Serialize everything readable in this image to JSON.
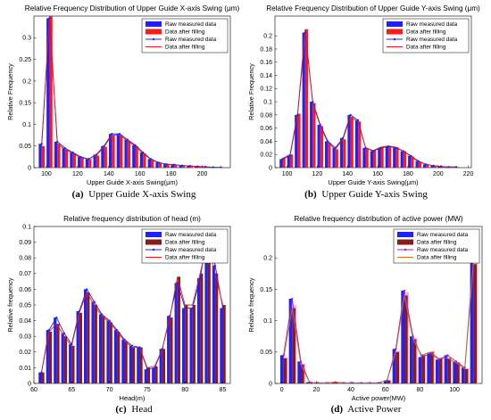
{
  "colors": {
    "raw_bar": "#1f1fff",
    "fill_bar_red": "#ff1a1a",
    "fill_bar_brown": "#8b1a1a",
    "fill_bar_pink": "#f4a6c8",
    "raw_line": "#1f1fff",
    "fill_line": "#e8141c",
    "raw_line_magenta": "#9b1fd0",
    "fill_line_orange": "#d2691e"
  },
  "chart_data": [
    {
      "panel_key": "a",
      "type": "bar",
      "caption_label": "(a)",
      "caption_text": "Upper Guide X-axis Swing",
      "title": "Relative Frequency Distribution of Upper Guide X-axis Swing (μm)",
      "xlabel": "Upper Guide X-axis Swing(μm)",
      "ylabel": "Relative Frequency",
      "xlim": [
        92,
        218
      ],
      "ylim": [
        0,
        0.35
      ],
      "xticks": [
        100,
        120,
        140,
        160,
        180,
        200
      ],
      "yticks": [
        0,
        0.05,
        0.1,
        0.15,
        0.2,
        0.25,
        0.3
      ],
      "bar_style": "red",
      "legend": [
        "Raw measured data",
        "Data after filling",
        "Raw measured data",
        "Data after filling"
      ],
      "x": [
        97,
        102,
        107,
        112,
        117,
        122,
        127,
        132,
        137,
        142,
        147,
        152,
        157,
        162,
        167,
        172,
        177,
        182,
        187,
        192,
        197,
        202,
        207,
        212
      ],
      "series": [
        {
          "name": "Raw measured data",
          "values": [
            0.055,
            0.345,
            0.06,
            0.045,
            0.035,
            0.025,
            0.02,
            0.03,
            0.05,
            0.078,
            0.078,
            0.065,
            0.052,
            0.035,
            0.02,
            0.012,
            0.008,
            0.007,
            0.005,
            0.004,
            0.003,
            0.002,
            0.001,
            0.001
          ]
        },
        {
          "name": "Data after filling",
          "values": [
            0.05,
            0.35,
            0.055,
            0.042,
            0.033,
            0.023,
            0.02,
            0.028,
            0.048,
            0.075,
            0.075,
            0.062,
            0.05,
            0.033,
            0.019,
            0.011,
            0.008,
            0.006,
            0.005,
            0.004,
            0.003,
            0.002,
            0.001,
            0.001
          ]
        }
      ]
    },
    {
      "panel_key": "b",
      "type": "bar",
      "caption_label": "(b)",
      "caption_text": "Upper Guide Y-axis Swing",
      "title": "Relative Frequency Distribution of Upper Guide Y-axis Swing (μm)",
      "xlabel": "Upper Guide Y-axis Swing(μm)",
      "ylabel": "Relative Frequency",
      "xlim": [
        92,
        222
      ],
      "ylim": [
        0,
        0.23
      ],
      "xticks": [
        100,
        120,
        140,
        160,
        180,
        200,
        220
      ],
      "yticks": [
        0,
        0.02,
        0.04,
        0.06,
        0.08,
        0.1,
        0.12,
        0.14,
        0.16,
        0.18,
        0.2
      ],
      "bar_style": "red",
      "legend": [
        "Raw measured data",
        "Data after filling",
        "Raw measured data",
        "Data after filling"
      ],
      "x": [
        97,
        102,
        107,
        112,
        117,
        122,
        127,
        132,
        137,
        142,
        147,
        152,
        157,
        162,
        167,
        172,
        177,
        182,
        187,
        192,
        197,
        202,
        207,
        212
      ],
      "series": [
        {
          "name": "Raw measured data",
          "values": [
            0.013,
            0.018,
            0.08,
            0.205,
            0.1,
            0.065,
            0.04,
            0.03,
            0.045,
            0.08,
            0.072,
            0.03,
            0.025,
            0.03,
            0.032,
            0.03,
            0.025,
            0.018,
            0.01,
            0.005,
            0.003,
            0.002,
            0.001,
            0.001
          ]
        },
        {
          "name": "Data after filling",
          "values": [
            0.014,
            0.02,
            0.082,
            0.21,
            0.098,
            0.063,
            0.038,
            0.028,
            0.043,
            0.077,
            0.07,
            0.03,
            0.026,
            0.031,
            0.033,
            0.031,
            0.025,
            0.017,
            0.009,
            0.005,
            0.003,
            0.002,
            0.001,
            0.001
          ]
        }
      ]
    },
    {
      "panel_key": "c",
      "type": "bar",
      "caption_label": "(c)",
      "caption_text": "Head",
      "title": "Relative frequency distribution of head (m)",
      "xlabel": "Head(m)",
      "ylabel": "Relative frequency",
      "xlim": [
        60,
        86
      ],
      "ylim": [
        0,
        0.1
      ],
      "xticks": [
        60,
        65,
        70,
        75,
        80,
        85
      ],
      "yticks": [
        0,
        0.01,
        0.02,
        0.03,
        0.04,
        0.05,
        0.06,
        0.07,
        0.08,
        0.09,
        0.1
      ],
      "bar_style": "brown",
      "legend": [
        "Raw measured data",
        "Data after filling",
        "Raw measured data",
        "Data after filling"
      ],
      "x": [
        61,
        62,
        63,
        64,
        65,
        66,
        67,
        68,
        69,
        70,
        71,
        72,
        73,
        74,
        75,
        76,
        77,
        78,
        79,
        80,
        81,
        82,
        83,
        84,
        85
      ],
      "series": [
        {
          "name": "Raw measured data",
          "values": [
            0.007,
            0.034,
            0.042,
            0.032,
            0.025,
            0.046,
            0.06,
            0.052,
            0.044,
            0.04,
            0.034,
            0.028,
            0.024,
            0.023,
            0.009,
            0.01,
            0.022,
            0.043,
            0.064,
            0.048,
            0.048,
            0.067,
            0.095,
            0.075,
            0.048
          ]
        },
        {
          "name": "Data after filling",
          "values": [
            0.007,
            0.033,
            0.038,
            0.03,
            0.024,
            0.045,
            0.058,
            0.05,
            0.043,
            0.039,
            0.033,
            0.027,
            0.023,
            0.023,
            0.01,
            0.011,
            0.022,
            0.042,
            0.068,
            0.05,
            0.05,
            0.07,
            0.09,
            0.07,
            0.05
          ]
        }
      ]
    },
    {
      "panel_key": "d",
      "type": "bar",
      "caption_label": "(d)",
      "caption_text": "Active Power",
      "title": "Relative frequency distribution of active power (MW)",
      "xlabel": "Active power(MW)",
      "ylabel": "Relative frequency",
      "xlim": [
        -4,
        116
      ],
      "ylim": [
        0,
        0.25
      ],
      "xticks": [
        0,
        20,
        40,
        60,
        80,
        100
      ],
      "yticks": [
        0,
        0.05,
        0.1,
        0.15,
        0.2
      ],
      "bar_style": "brown_pink",
      "legend": [
        "Raw measured data",
        "Data after filling",
        "Raw measured data",
        "Data after filling"
      ],
      "x": [
        1,
        6,
        11,
        16,
        21,
        26,
        31,
        36,
        41,
        46,
        51,
        56,
        61,
        66,
        71,
        76,
        81,
        86,
        91,
        96,
        101,
        106,
        111
      ],
      "series": [
        {
          "name": "Raw measured data",
          "values": [
            0.045,
            0.135,
            0.035,
            0.002,
            0.001,
            0.001,
            0.002,
            0.001,
            0.001,
            0.001,
            0.001,
            0.001,
            0.005,
            0.055,
            0.148,
            0.075,
            0.042,
            0.048,
            0.038,
            0.045,
            0.035,
            0.025,
            0.2
          ]
        },
        {
          "name": "Data after filling",
          "values": [
            0.04,
            0.12,
            0.03,
            0.002,
            0.001,
            0.001,
            0.002,
            0.001,
            0.001,
            0.001,
            0.001,
            0.001,
            0.005,
            0.05,
            0.14,
            0.07,
            0.045,
            0.05,
            0.04,
            0.04,
            0.033,
            0.023,
            0.19
          ]
        }
      ]
    }
  ]
}
